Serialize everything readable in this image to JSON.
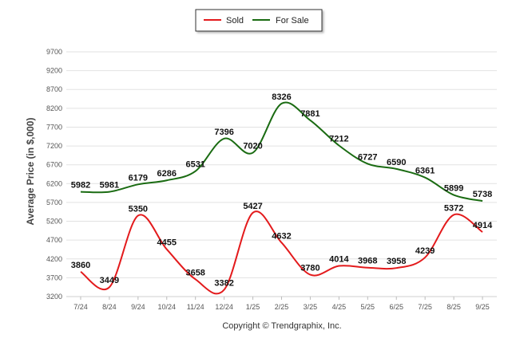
{
  "chart_data": {
    "type": "line",
    "title": "",
    "xlabel": "",
    "ylabel": "Average Price (in $,000)",
    "categories": [
      "7/24",
      "8/24",
      "9/24",
      "10/24",
      "11/24",
      "12/24",
      "1/25",
      "2/25",
      "3/25",
      "4/25",
      "5/25",
      "6/25",
      "7/25",
      "8/25",
      "9/25"
    ],
    "yticks": [
      3200,
      3700,
      4200,
      4700,
      5200,
      5700,
      6200,
      6700,
      7200,
      7700,
      8200,
      8700,
      9200,
      9700
    ],
    "ylim": [
      3200,
      9700
    ],
    "grid": true,
    "legend_position": "top-center",
    "series": [
      {
        "name": "Sold",
        "color": "#e31a1c",
        "values": [
          3860,
          3449,
          5350,
          4455,
          3658,
          3382,
          5427,
          4632,
          3780,
          4014,
          3968,
          3958,
          4239,
          5372,
          4914
        ]
      },
      {
        "name": "For Sale",
        "color": "#1a6b12",
        "values": [
          5982,
          5981,
          6179,
          6286,
          6531,
          7396,
          7020,
          8326,
          7881,
          7212,
          6727,
          6590,
          6361,
          5899,
          5738
        ]
      }
    ],
    "footer": "Copyright © Trendgraphix, Inc."
  }
}
